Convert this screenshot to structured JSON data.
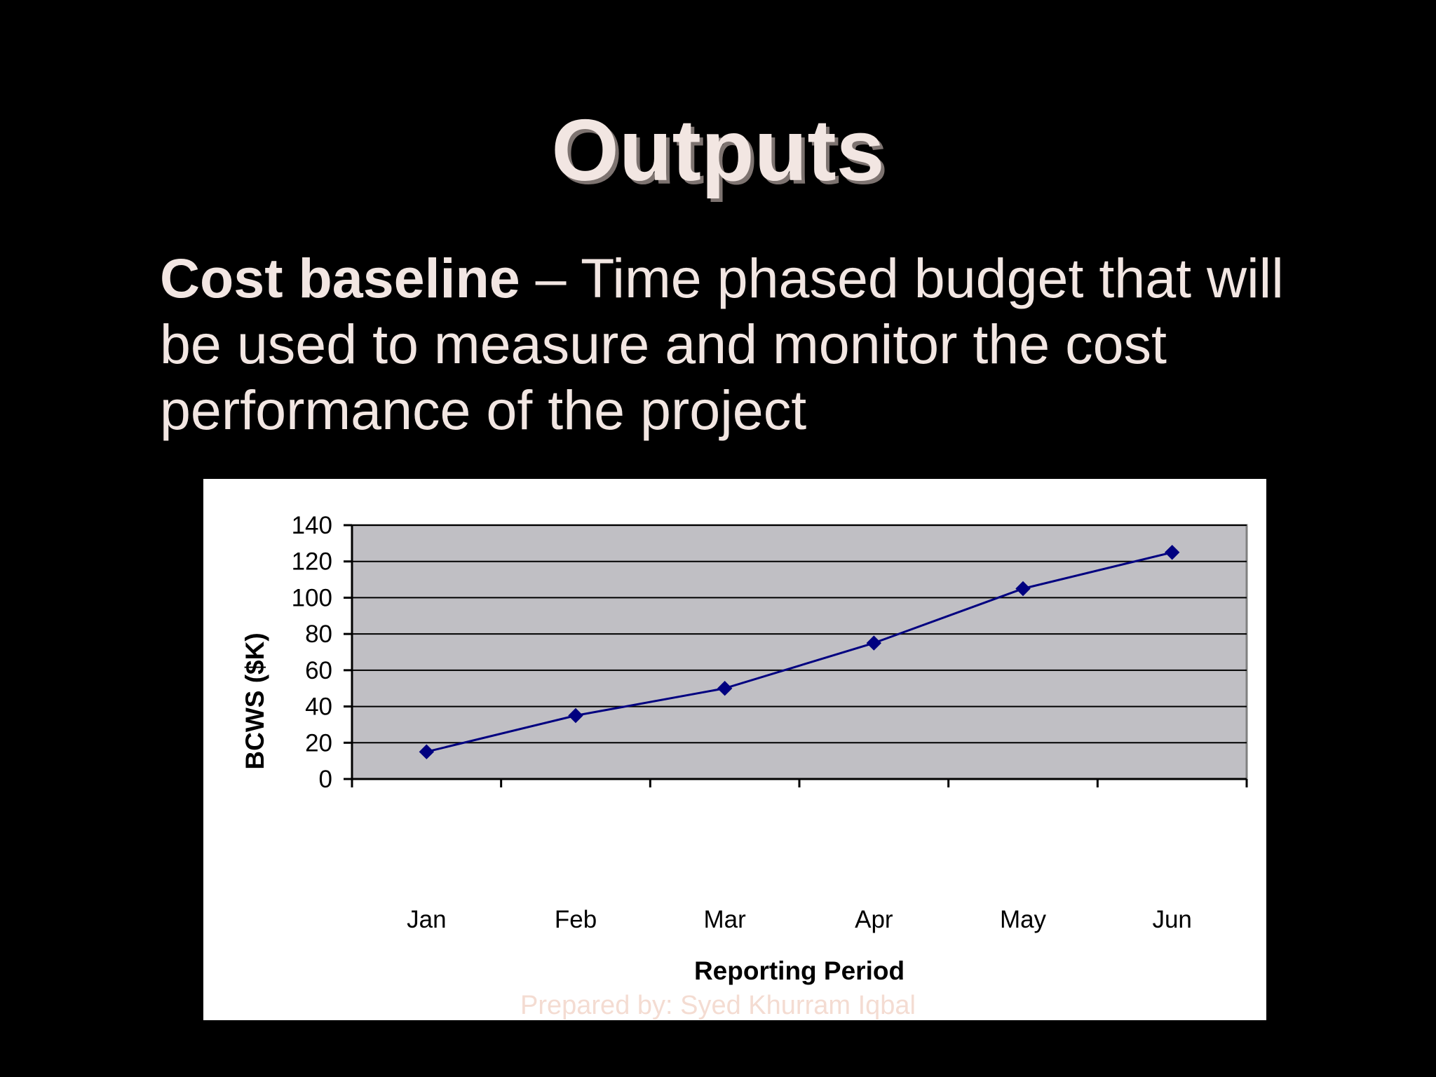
{
  "slide": {
    "title": "Outputs",
    "body_term": "Cost baseline",
    "body_rest": " – Time phased budget that will be used to measure and monitor the cost performance of the project",
    "credit": "Prepared by: Syed Khurram Iqbal"
  },
  "colors": {
    "background": "#000000",
    "text": "#f2e6e2",
    "plot_area": "#c0bfc4",
    "series": "#000080"
  },
  "chart_data": {
    "type": "line",
    "categories": [
      "Jan",
      "Feb",
      "Mar",
      "Apr",
      "May",
      "Jun"
    ],
    "series": [
      {
        "values": [
          15,
          35,
          50,
          75,
          105,
          125
        ]
      }
    ],
    "xlabel": "Reporting Period",
    "ylabel": "BCWS ($K)",
    "ylim": [
      0,
      140
    ],
    "yticks": [
      0,
      20,
      40,
      60,
      80,
      100,
      120,
      140
    ],
    "grid": true,
    "marker": "diamond",
    "legend": "none"
  }
}
